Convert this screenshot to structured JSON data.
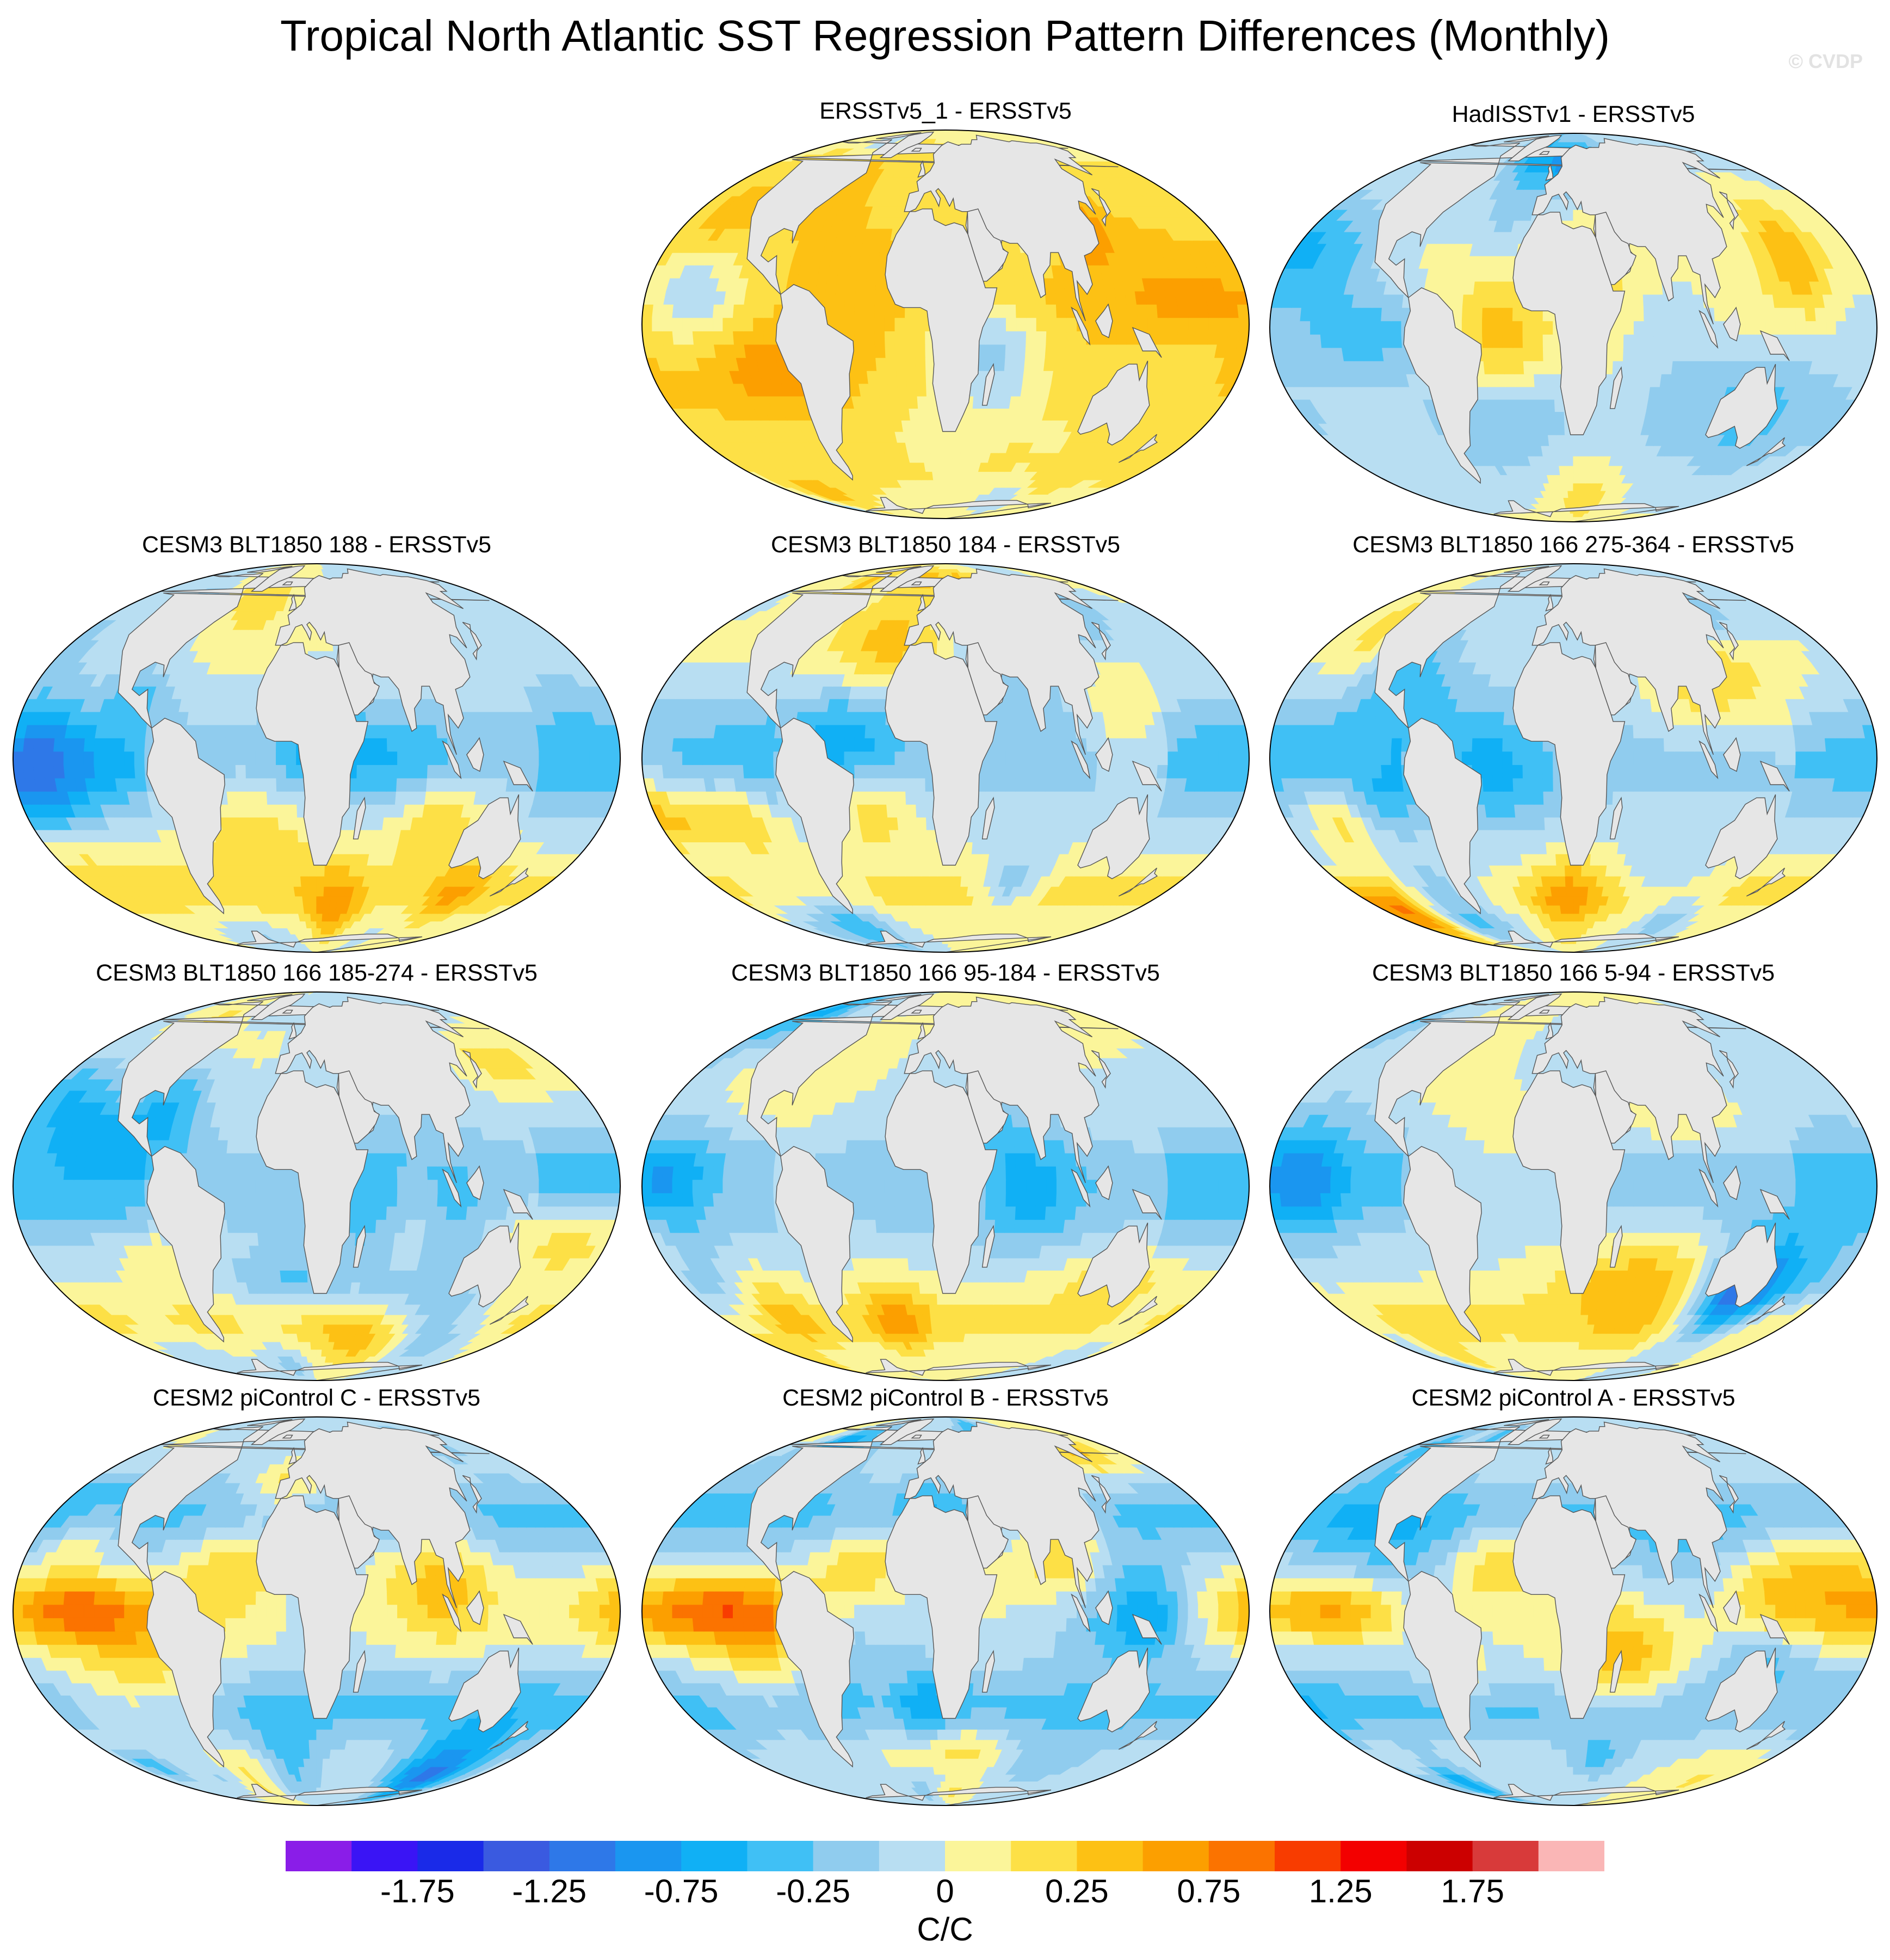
{
  "title": "Tropical North Atlantic SST Regression Pattern Differences (Monthly)",
  "watermark": "© CVDP",
  "panels": [
    {
      "title": "ERSSTv5_1 - ERSSTv5",
      "style": "warm",
      "seed": 11
    },
    {
      "title": "HadISSTv1 - ERSSTv5",
      "style": "mixed",
      "seed": 23
    },
    {
      "title": "CESM3 BLT1850 188 - ERSSTv5",
      "style": "cool",
      "seed": 37
    },
    {
      "title": "CESM3 BLT1850 184 - ERSSTv5",
      "style": "cool",
      "seed": 41
    },
    {
      "title": "CESM3 BLT1850 166 275-364 - ERSSTv5",
      "style": "cool",
      "seed": 53
    },
    {
      "title": "CESM3 BLT1850 166 185-274 - ERSSTv5",
      "style": "cool",
      "seed": 67
    },
    {
      "title": "CESM3 BLT1850 166 95-184 - ERSSTv5",
      "style": "cool",
      "seed": 71
    },
    {
      "title": "CESM3 BLT1850 166 5-94 - ERSSTv5",
      "style": "cool",
      "seed": 83
    },
    {
      "title": "CESM2 piControl C - ERSSTv5",
      "style": "enso",
      "seed": 97
    },
    {
      "title": "CESM2 piControl B - ERSSTv5",
      "style": "enso",
      "seed": 101
    },
    {
      "title": "CESM2 piControl A - ERSSTv5",
      "style": "enso",
      "seed": 113
    }
  ],
  "colorbar": {
    "colors": [
      "#8a1de8",
      "#3a14f5",
      "#1a2ae8",
      "#3a5ae0",
      "#2e78e8",
      "#1a96f0",
      "#10b0f5",
      "#40c0f5",
      "#90ccee",
      "#b8def2",
      "#fbf59a",
      "#fde046",
      "#fdc114",
      "#fc9f00",
      "#fb7300",
      "#f83c00",
      "#f30000",
      "#cc0000",
      "#d83a3a",
      "#fab6b6"
    ],
    "labels": [
      "-1.75",
      "-1.25",
      "-0.75",
      "-0.25",
      "0",
      "0.25",
      "0.75",
      "1.25",
      "1.75"
    ],
    "units": "C/C"
  }
}
